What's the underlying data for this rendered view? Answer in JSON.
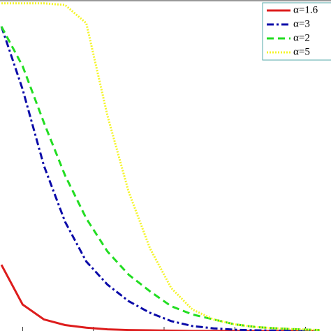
{
  "chart_data": {
    "type": "line",
    "x": [
      -0.3,
      0,
      0.3,
      0.6,
      0.9,
      1.2,
      1.5,
      1.8,
      2.1,
      2.4,
      2.7,
      3.0,
      3.3,
      3.6,
      3.9,
      4.2
    ],
    "series": [
      {
        "name": "α=1.6",
        "color": "#dd1c1c",
        "style": "solid",
        "values": [
          0.2,
          0.08,
          0.035,
          0.018,
          0.01,
          0.005,
          0.003,
          0.002,
          0.001,
          0,
          0,
          0,
          0,
          0,
          0,
          0
        ]
      },
      {
        "name": "α=3",
        "color": "#0a0aa8",
        "style": "dashdot",
        "values": [
          0.92,
          0.73,
          0.5,
          0.33,
          0.21,
          0.14,
          0.09,
          0.055,
          0.03,
          0.015,
          0.008,
          0.004,
          0.002,
          0.001,
          0.0005,
          0.0003
        ]
      },
      {
        "name": "α=2",
        "color": "#22dd22",
        "style": "dashed",
        "values": [
          0.92,
          0.8,
          0.63,
          0.47,
          0.34,
          0.24,
          0.17,
          0.12,
          0.075,
          0.05,
          0.035,
          0.02,
          0.012,
          0.008,
          0.005,
          0.003
        ]
      },
      {
        "name": "α=5",
        "color": "#f5f52a",
        "style": "dotted",
        "values": [
          0.99,
          0.99,
          0.99,
          0.985,
          0.93,
          0.65,
          0.42,
          0.25,
          0.13,
          0.065,
          0.035,
          0.02,
          0.012,
          0.008,
          0.005,
          0.003
        ]
      }
    ],
    "xlim": [
      -0.32,
      4.36
    ],
    "ylim": [
      0,
      1
    ],
    "xticks": [
      0,
      1,
      2,
      3,
      4
    ],
    "legend": "top-right"
  }
}
